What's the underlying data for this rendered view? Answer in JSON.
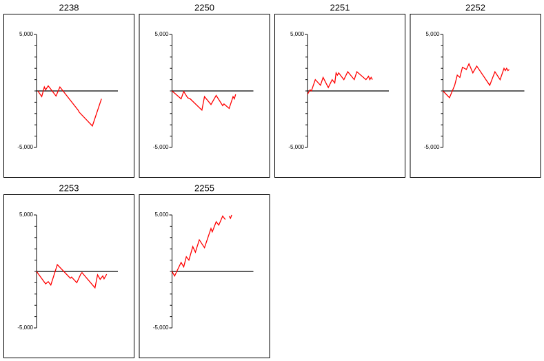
{
  "chart_data": [
    {
      "type": "line",
      "title": "2238",
      "color": "#ff0000",
      "xlim": [
        0,
        60
      ],
      "ylim": [
        -5000,
        5000
      ],
      "yticks": [
        {
          "value": 5000,
          "label": "5,000"
        },
        {
          "value": -5000,
          "label": "-5,000"
        }
      ],
      "minor_yticks": [
        -4000,
        -3000,
        -2000,
        -1000,
        0,
        1000,
        2000,
        3000,
        4000
      ],
      "x": [
        1,
        4,
        6,
        7,
        9,
        15,
        18,
        32,
        33,
        43,
        50
      ],
      "values": [
        0,
        -500,
        350,
        100,
        450,
        -450,
        350,
        -1700,
        -1900,
        -3100,
        -700
      ]
    },
    {
      "type": "line",
      "title": "2250",
      "color": "#ff0000",
      "xlim": [
        0,
        60
      ],
      "ylim": [
        -5000,
        5000
      ],
      "yticks": [
        {
          "value": 5000,
          "label": "5,000"
        },
        {
          "value": -5000,
          "label": "-5,000"
        }
      ],
      "minor_yticks": [
        -4000,
        -3000,
        -2000,
        -1000,
        0,
        1000,
        2000,
        3000,
        4000
      ],
      "x": [
        0,
        7,
        9,
        12,
        14,
        23,
        25,
        30,
        34,
        39,
        40,
        44,
        47,
        48,
        49
      ],
      "values": [
        0,
        -700,
        -50,
        -600,
        -700,
        -1700,
        -500,
        -1200,
        -400,
        -1300,
        -1150,
        -1550,
        -500,
        -700,
        -300
      ]
    },
    {
      "type": "line",
      "title": "2251",
      "color": "#ff0000",
      "xlim": [
        0,
        60
      ],
      "ylim": [
        -5000,
        5000
      ],
      "yticks": [
        {
          "value": 5000,
          "label": "5,000"
        },
        {
          "value": -5000,
          "label": "-5,000"
        }
      ],
      "minor_yticks": [
        -4000,
        -3000,
        -2000,
        -1000,
        0,
        1000,
        2000,
        3000,
        4000
      ],
      "x": [
        0,
        2,
        3,
        6,
        10,
        12,
        16,
        19,
        21,
        22,
        23,
        24,
        28,
        31,
        36,
        38,
        45,
        47,
        48,
        49,
        50
      ],
      "values": [
        -300,
        100,
        0,
        1000,
        500,
        1200,
        300,
        1000,
        700,
        1600,
        1400,
        1600,
        1000,
        1700,
        1000,
        1700,
        1000,
        1300,
        1000,
        1200,
        1000
      ]
    },
    {
      "type": "line",
      "title": "2252",
      "color": "#ff0000",
      "xlim": [
        0,
        60
      ],
      "ylim": [
        -5000,
        5000
      ],
      "yticks": [
        {
          "value": 5000,
          "label": "5,000"
        },
        {
          "value": -5000,
          "label": "-5,000"
        }
      ],
      "minor_yticks": [
        -4000,
        -3000,
        -2000,
        -1000,
        0,
        1000,
        2000,
        3000,
        4000
      ],
      "x": [
        0,
        5,
        9,
        11,
        13,
        15,
        18,
        20,
        23,
        26,
        36,
        40,
        44,
        47,
        48,
        49,
        50,
        51
      ],
      "values": [
        0,
        -600,
        500,
        1400,
        1200,
        2100,
        1900,
        2400,
        1600,
        2200,
        500,
        1700,
        1000,
        2000,
        1800,
        2000,
        1800,
        1900
      ]
    },
    {
      "type": "line",
      "title": "2253",
      "color": "#ff0000",
      "xlim": [
        0,
        60
      ],
      "ylim": [
        -5000,
        5000
      ],
      "yticks": [
        {
          "value": 5000,
          "label": "5,000"
        },
        {
          "value": -5000,
          "label": "-5,000"
        }
      ],
      "minor_yticks": [
        -4000,
        -3000,
        -2000,
        -1000,
        0,
        1000,
        2000,
        3000,
        4000
      ],
      "x": [
        0,
        7,
        9,
        11,
        16,
        26,
        27,
        31,
        34,
        35,
        45,
        47,
        49,
        51,
        52,
        54
      ],
      "values": [
        0,
        -1100,
        -900,
        -1200,
        600,
        -600,
        -500,
        -1000,
        -250,
        -100,
        -1450,
        -300,
        -700,
        -400,
        -650,
        -250
      ]
    },
    {
      "type": "line",
      "title": "2255",
      "color": "#ff0000",
      "xlim": [
        0,
        60
      ],
      "ylim": [
        -5000,
        5000
      ],
      "yticks": [
        {
          "value": 5000,
          "label": "5,000"
        },
        {
          "value": -5000,
          "label": "-5,000"
        }
      ],
      "minor_yticks": [
        -4000,
        -3000,
        -2000,
        -1000,
        0,
        1000,
        2000,
        3000,
        4000
      ],
      "x": [
        0,
        2,
        7,
        9,
        11,
        13,
        16,
        18,
        21,
        25,
        30,
        31,
        34,
        36,
        39,
        41,
        null,
        44,
        45,
        46
      ],
      "values": [
        0,
        -400,
        800,
        400,
        1300,
        1000,
        2200,
        1700,
        2800,
        2100,
        3800,
        3500,
        4400,
        4100,
        4900,
        4600,
        null,
        4900,
        4700,
        5000
      ]
    }
  ]
}
